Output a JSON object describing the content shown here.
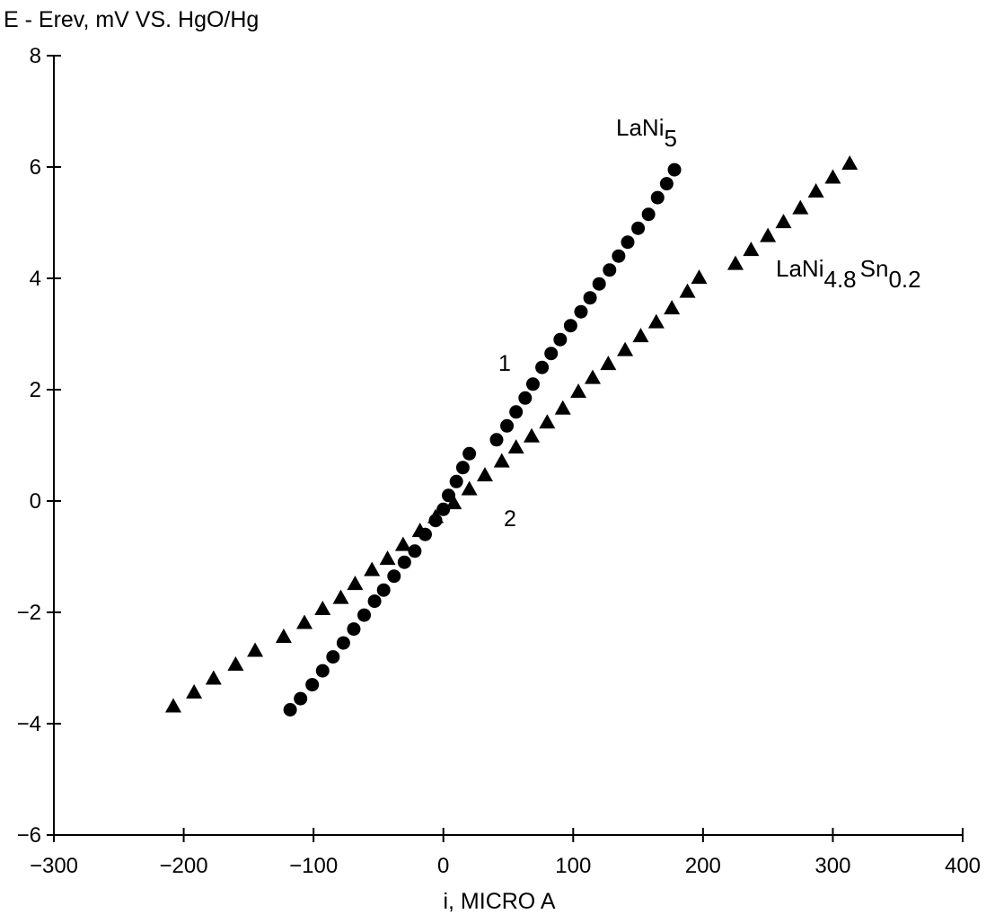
{
  "chart_data": {
    "type": "scatter",
    "title": "",
    "ylabel": "E - Erev, mV VS. HgO/Hg",
    "xlabel": "i, MICRO A",
    "xlim": [
      -300,
      400
    ],
    "ylim": [
      -6,
      8
    ],
    "xticks": [
      -300,
      -200,
      -100,
      0,
      100,
      200,
      300,
      400
    ],
    "yticks": [
      -6,
      -4,
      -2,
      0,
      2,
      4,
      6,
      8
    ],
    "xtick_labels": [
      "−300",
      "−200",
      "−100",
      "0",
      "100",
      "200",
      "300",
      "400"
    ],
    "ytick_labels": [
      "−6",
      "−4",
      "−2",
      "0",
      "2",
      "4",
      "6",
      "8"
    ],
    "grid": false,
    "legend": "none",
    "series": [
      {
        "name": "LaNi5",
        "label_base": "LaNi",
        "label_sub": "5",
        "curve_number": "1",
        "marker": "circle",
        "color": "#000000",
        "points": [
          [
            -118,
            -3.75
          ],
          [
            -110,
            -3.55
          ],
          [
            -101,
            -3.3
          ],
          [
            -93,
            -3.05
          ],
          [
            -85,
            -2.8
          ],
          [
            -77,
            -2.55
          ],
          [
            -69,
            -2.3
          ],
          [
            -61,
            -2.05
          ],
          [
            -53,
            -1.8
          ],
          [
            -46,
            -1.6
          ],
          [
            -38,
            -1.35
          ],
          [
            -30,
            -1.1
          ],
          [
            -22,
            -0.9
          ],
          [
            -14,
            -0.6
          ],
          [
            -6,
            -0.35
          ],
          [
            0,
            -0.15
          ],
          [
            4,
            0.1
          ],
          [
            10,
            0.35
          ],
          [
            15,
            0.6
          ],
          [
            20,
            0.85
          ],
          [
            41,
            1.1
          ],
          [
            49,
            1.35
          ],
          [
            56,
            1.6
          ],
          [
            63,
            1.85
          ],
          [
            69,
            2.1
          ],
          [
            76,
            2.4
          ],
          [
            83,
            2.65
          ],
          [
            90,
            2.9
          ],
          [
            98,
            3.15
          ],
          [
            106,
            3.4
          ],
          [
            113,
            3.65
          ],
          [
            120,
            3.9
          ],
          [
            128,
            4.15
          ],
          [
            135,
            4.4
          ],
          [
            142,
            4.65
          ],
          [
            150,
            4.9
          ],
          [
            158,
            5.15
          ],
          [
            165,
            5.45
          ],
          [
            172,
            5.7
          ],
          [
            178,
            5.95
          ]
        ]
      },
      {
        "name": "LaNi4.8Sn0.2",
        "label_base": "LaNi",
        "label_sub1": "4.8",
        "label_mid": "Sn",
        "label_sub2": "0.2",
        "curve_number": "2",
        "marker": "triangle",
        "color": "#000000",
        "points": [
          [
            -208,
            -3.7
          ],
          [
            -192,
            -3.45
          ],
          [
            -177,
            -3.2
          ],
          [
            -160,
            -2.95
          ],
          [
            -145,
            -2.7
          ],
          [
            -123,
            -2.45
          ],
          [
            -107,
            -2.2
          ],
          [
            -93,
            -1.95
          ],
          [
            -79,
            -1.75
          ],
          [
            -68,
            -1.5
          ],
          [
            -55,
            -1.25
          ],
          [
            -43,
            -1.05
          ],
          [
            -31,
            -0.8
          ],
          [
            -18,
            -0.55
          ],
          [
            -6,
            -0.3
          ],
          [
            8,
            -0.05
          ],
          [
            20,
            0.2
          ],
          [
            32,
            0.45
          ],
          [
            45,
            0.7
          ],
          [
            56,
            0.95
          ],
          [
            68,
            1.15
          ],
          [
            80,
            1.4
          ],
          [
            92,
            1.65
          ],
          [
            104,
            1.95
          ],
          [
            115,
            2.2
          ],
          [
            127,
            2.45
          ],
          [
            140,
            2.7
          ],
          [
            152,
            2.95
          ],
          [
            164,
            3.2
          ],
          [
            176,
            3.45
          ],
          [
            188,
            3.75
          ],
          [
            197,
            4.0
          ],
          [
            225,
            4.25
          ],
          [
            237,
            4.5
          ],
          [
            250,
            4.75
          ],
          [
            262,
            5.0
          ],
          [
            275,
            5.25
          ],
          [
            287,
            5.55
          ],
          [
            300,
            5.8
          ],
          [
            313,
            6.05
          ]
        ]
      }
    ]
  }
}
